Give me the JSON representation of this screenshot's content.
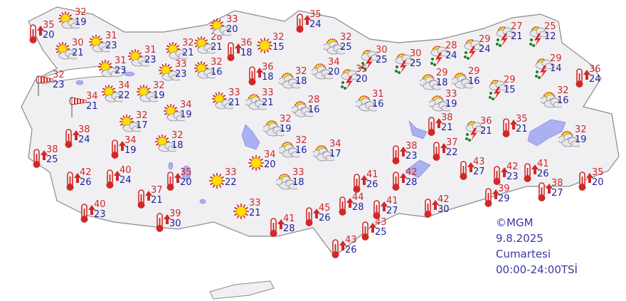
{
  "credit": "©MGM",
  "date": "9.8.2025",
  "day": "Cumartesi",
  "period": "00:00-24:00TSİ",
  "colors": {
    "max": "#d02828",
    "min": "#1e1e9a",
    "land": "#f0f0f3",
    "water": "#aab0f0"
  },
  "stations": [
    {
      "icon": "partly-sunny",
      "max": "32",
      "min": "19"
    },
    {
      "icon": "hot",
      "max": "35",
      "min": "20"
    },
    {
      "icon": "partly-sunny",
      "max": "30",
      "min": "21"
    },
    {
      "icon": "partly-sunny",
      "max": "31",
      "min": "23"
    },
    {
      "icon": "partly-sunny",
      "max": "31",
      "min": "23"
    },
    {
      "icon": "partly-sunny",
      "max": "31",
      "min": "23"
    },
    {
      "icon": "partly-sunny",
      "max": "32",
      "min": "21"
    },
    {
      "icon": "partly-sunny",
      "max": "28",
      "min": "21"
    },
    {
      "icon": "partly-sunny",
      "max": "33",
      "min": "20"
    },
    {
      "icon": "hot",
      "max": "36",
      "min": "18"
    },
    {
      "icon": "sunny",
      "max": "32",
      "min": "15"
    },
    {
      "icon": "hot",
      "max": "35",
      "min": "24"
    },
    {
      "icon": "partly-sunny",
      "max": "33",
      "min": "23"
    },
    {
      "icon": "partly-sunny",
      "max": "32",
      "min": "16"
    },
    {
      "icon": "hot",
      "max": "36",
      "min": "18"
    },
    {
      "icon": "windy",
      "max": "32",
      "min": "23"
    },
    {
      "icon": "windy",
      "max": "34",
      "min": "21"
    },
    {
      "icon": "partly-sunny",
      "max": "34",
      "min": "22"
    },
    {
      "icon": "partly-sunny",
      "max": "32",
      "min": "19"
    },
    {
      "icon": "partly-sunny",
      "max": "34",
      "min": "19"
    },
    {
      "icon": "partly-sunny",
      "max": "32",
      "min": "17"
    },
    {
      "icon": "partly-sunny",
      "max": "33",
      "min": "21"
    },
    {
      "icon": "partly-cloudy",
      "max": "33",
      "min": "21"
    },
    {
      "icon": "partly-cloudy",
      "max": "32",
      "min": "18"
    },
    {
      "icon": "partly-cloudy",
      "max": "28",
      "min": "16"
    },
    {
      "icon": "partly-cloudy",
      "max": "34",
      "min": "20"
    },
    {
      "icon": "partly-cloudy",
      "max": "32",
      "min": "25"
    },
    {
      "icon": "thunderstorm",
      "max": "30",
      "min": "25"
    },
    {
      "icon": "thunderstorm",
      "max": "35",
      "min": "20"
    },
    {
      "icon": "thunderstorm",
      "max": "30",
      "min": "25"
    },
    {
      "icon": "thunderstorm",
      "max": "28",
      "min": "24"
    },
    {
      "icon": "thunderstorm",
      "max": "29",
      "min": "24"
    },
    {
      "icon": "thunderstorm",
      "max": "27",
      "min": "21"
    },
    {
      "icon": "thunderstorm",
      "max": "25",
      "min": "12"
    },
    {
      "icon": "thunderstorm",
      "max": "29",
      "min": "14"
    },
    {
      "icon": "hot",
      "max": "36",
      "min": "24"
    },
    {
      "icon": "partly-cloudy",
      "max": "29",
      "min": "18"
    },
    {
      "icon": "partly-cloudy",
      "max": "29",
      "min": "16"
    },
    {
      "icon": "thunderstorm",
      "max": "29",
      "min": "15"
    },
    {
      "icon": "partly-cloudy",
      "max": "32",
      "min": "16"
    },
    {
      "icon": "partly-cloudy",
      "max": "31",
      "min": "16"
    },
    {
      "icon": "partly-cloudy",
      "max": "33",
      "min": "19"
    },
    {
      "icon": "hot",
      "max": "38",
      "min": "21"
    },
    {
      "icon": "thunderstorm",
      "max": "36",
      "min": "21"
    },
    {
      "icon": "hot",
      "max": "35",
      "min": "21"
    },
    {
      "icon": "partly-cloudy",
      "max": "32",
      "min": "19"
    },
    {
      "icon": "partly-cloudy",
      "max": "32",
      "min": "19"
    },
    {
      "icon": "partly-sunny",
      "max": "32",
      "min": "18"
    },
    {
      "icon": "hot",
      "max": "38",
      "min": "24"
    },
    {
      "icon": "hot",
      "max": "34",
      "min": "19"
    },
    {
      "icon": "hot",
      "max": "38",
      "min": "25"
    },
    {
      "icon": "partly-cloudy",
      "max": "32",
      "min": "16"
    },
    {
      "icon": "partly-cloudy",
      "max": "34",
      "min": "17"
    },
    {
      "icon": "sunny",
      "max": "34",
      "min": "20"
    },
    {
      "icon": "partly-cloudy",
      "max": "33",
      "min": "18"
    },
    {
      "icon": "sunny",
      "max": "33",
      "min": "22"
    },
    {
      "icon": "hot",
      "max": "35",
      "min": "20"
    },
    {
      "icon": "hot",
      "max": "42",
      "min": "26"
    },
    {
      "icon": "hot",
      "max": "40",
      "min": "24"
    },
    {
      "icon": "hot",
      "max": "37",
      "min": "21"
    },
    {
      "icon": "hot",
      "max": "40",
      "min": "23"
    },
    {
      "icon": "hot",
      "max": "39",
      "min": "30"
    },
    {
      "icon": "sunny",
      "max": "33",
      "min": "21"
    },
    {
      "icon": "hot",
      "max": "41",
      "min": "28"
    },
    {
      "icon": "hot",
      "max": "45",
      "min": "26"
    },
    {
      "icon": "hot",
      "max": "41",
      "min": "26"
    },
    {
      "icon": "hot",
      "max": "42",
      "min": "28"
    },
    {
      "icon": "hot",
      "max": "38",
      "min": "23"
    },
    {
      "icon": "hot",
      "max": "37",
      "min": "22"
    },
    {
      "icon": "hot",
      "max": "43",
      "min": "27"
    },
    {
      "icon": "hot",
      "max": "42",
      "min": "23"
    },
    {
      "icon": "hot",
      "max": "41",
      "min": "26"
    },
    {
      "icon": "hot",
      "max": "38",
      "min": "27"
    },
    {
      "icon": "hot",
      "max": "35",
      "min": "20"
    },
    {
      "icon": "hot",
      "max": "39",
      "min": "29"
    },
    {
      "icon": "hot",
      "max": "42",
      "min": "30"
    },
    {
      "icon": "hot",
      "max": "41",
      "min": "27"
    },
    {
      "icon": "hot",
      "max": "44",
      "min": "28"
    },
    {
      "icon": "hot",
      "max": "43",
      "min": "25"
    },
    {
      "icon": "hot",
      "max": "43",
      "min": "26"
    }
  ]
}
